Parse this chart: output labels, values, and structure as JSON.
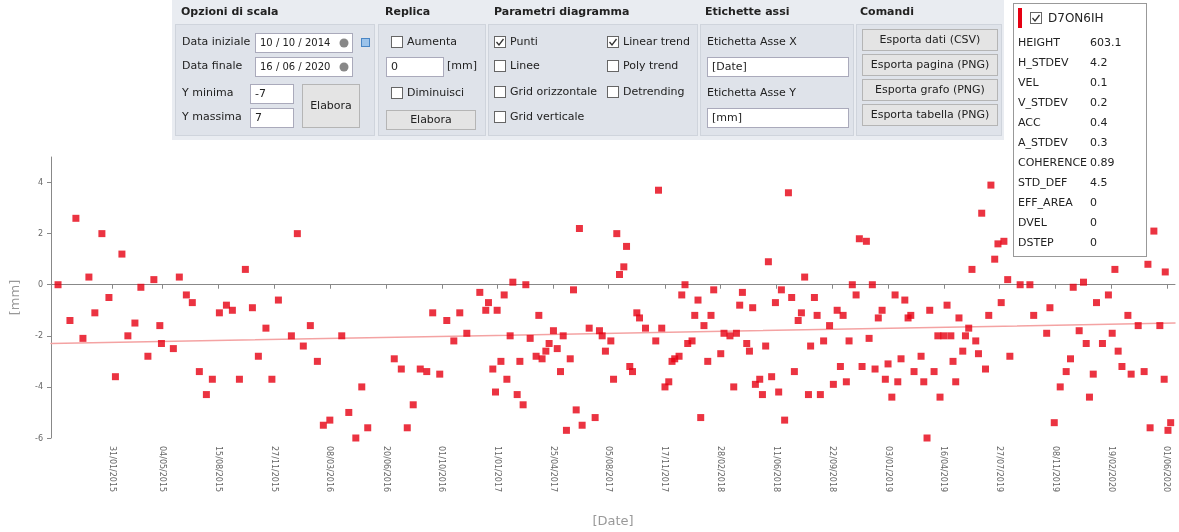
{
  "chart_data": [
    {
      "type": "other",
      "annotations": [
        "Opzioni di scala",
        "Data iniziale",
        "10 / 10 / 2014",
        "Data finale",
        "16 / 06 / 2020",
        "Y minima",
        "-7",
        "Y massima",
        "7",
        "Elabora",
        "Replica",
        "Aumenta",
        "0",
        "[mm]",
        "Diminuisci",
        "Elabora",
        "Parametri diagramma",
        "Punti",
        "Linee",
        "Grid orizzontale",
        "Grid verticale",
        "Linear trend",
        "Poly trend",
        "Detrending",
        "Etichette assi",
        "Etichetta Asse X",
        "[Date]",
        "Etichetta Asse Y",
        "[mm]",
        "Comandi",
        "Esporta dati (CSV)",
        "Esporta pagina (PNG)",
        "Esporta grafo (PNG)",
        "Esporta tabella (PNG)"
      ]
    },
    {
      "type": "other",
      "annotations": [
        "D7ON6IH",
        "HEIGHT",
        "603.1",
        "H_STDEV",
        "4.2",
        "VEL",
        "0.1",
        "V_STDEV",
        "0.2",
        "ACC",
        "0.4",
        "A_STDEV",
        "0.3",
        "COHERENCE",
        "0.89",
        "STD_DEF",
        "4.5",
        "EFF_AREA",
        "0",
        "DVEL",
        "0",
        "DSTEP",
        "0"
      ]
    },
    {
      "type": "scatter",
      "xlabel": "[Date]",
      "ylabel": "[mm]",
      "line_style": "solid",
      "xlim": [
        "2014-10-10",
        "2020-06-16"
      ],
      "ylim": [
        -6,
        5
      ],
      "yticks": [
        -6,
        -4,
        -2,
        0,
        2,
        4
      ],
      "xticks": [
        {
          "value": "2015-01-31",
          "label": "31/01/2015"
        },
        {
          "value": "2015-05-04",
          "label": "04/05/2015"
        },
        {
          "value": "2015-08-15",
          "label": "15/08/2015"
        },
        {
          "value": "2015-11-27",
          "label": "27/11/2015"
        },
        {
          "value": "2016-03-08",
          "label": "08/03/2016"
        },
        {
          "value": "2016-06-20",
          "label": "20/06/2016"
        },
        {
          "value": "2016-10-01",
          "label": "01/10/2016"
        },
        {
          "value": "2017-01-11",
          "label": "11/01/2017"
        },
        {
          "value": "2017-04-25",
          "label": "25/04/2017"
        },
        {
          "value": "2017-08-05",
          "label": "05/08/2017"
        },
        {
          "value": "2017-11-17",
          "label": "17/11/2017"
        },
        {
          "value": "2018-02-28",
          "label": "28/02/2018"
        },
        {
          "value": "2018-06-11",
          "label": "11/06/2018"
        },
        {
          "value": "2018-09-22",
          "label": "22/09/2018"
        },
        {
          "value": "2019-01-03",
          "label": "03/01/2019"
        },
        {
          "value": "2019-04-16",
          "label": "16/04/2019"
        },
        {
          "value": "2019-07-27",
          "label": "27/07/2019"
        },
        {
          "value": "2019-11-08",
          "label": "08/11/2019"
        },
        {
          "value": "2020-02-19",
          "label": "19/02/2020"
        },
        {
          "value": "2020-06-01",
          "label": "01/06/2020"
        }
      ],
      "series": [
        {
          "type": "scatter",
          "marker": "square",
          "color": "#e60012",
          "x": [
            "2014-10-23",
            "2014-11-14",
            "2014-11-25",
            "2014-12-08",
            "2014-12-19",
            "2014-12-30",
            "2015-01-12",
            "2015-01-25",
            "2015-02-06",
            "2015-02-18",
            "2015-03-01",
            "2015-03-14",
            "2015-03-25",
            "2015-04-07",
            "2015-04-18",
            "2015-04-29",
            "2015-05-02",
            "2015-05-24",
            "2015-06-04",
            "2015-06-17",
            "2015-06-28",
            "2015-07-11",
            "2015-07-24",
            "2015-08-04",
            "2015-08-17",
            "2015-08-30",
            "2015-09-10",
            "2015-09-23",
            "2015-10-04",
            "2015-10-17",
            "2015-10-28",
            "2015-11-11",
            "2015-11-22",
            "2015-12-04",
            "2015-12-28",
            "2016-01-08",
            "2016-01-19",
            "2016-02-01",
            "2016-02-14",
            "2016-02-25",
            "2016-03-08",
            "2016-03-30",
            "2016-04-12",
            "2016-04-25",
            "2016-05-06",
            "2016-05-17",
            "2016-07-05",
            "2016-07-18",
            "2016-07-29",
            "2016-08-09",
            "2016-08-22",
            "2016-09-03",
            "2016-09-14",
            "2016-09-27",
            "2016-10-10",
            "2016-10-23",
            "2016-11-03",
            "2016-11-16",
            "2016-12-10",
            "2016-12-21",
            "2016-12-26",
            "2017-01-03",
            "2017-01-08",
            "2017-01-11",
            "2017-01-18",
            "2017-01-24",
            "2017-01-29",
            "2017-02-04",
            "2017-02-09",
            "2017-02-17",
            "2017-02-22",
            "2017-02-28",
            "2017-03-05",
            "2017-03-13",
            "2017-03-24",
            "2017-03-29",
            "2017-04-04",
            "2017-04-11",
            "2017-04-17",
            "2017-04-25",
            "2017-05-02",
            "2017-05-08",
            "2017-05-13",
            "2017-05-19",
            "2017-05-26",
            "2017-06-01",
            "2017-06-06",
            "2017-06-12",
            "2017-06-17",
            "2017-06-30",
            "2017-07-11",
            "2017-07-19",
            "2017-07-24",
            "2017-07-30",
            "2017-08-09",
            "2017-08-14",
            "2017-08-20",
            "2017-08-25",
            "2017-09-02",
            "2017-09-07",
            "2017-09-13",
            "2017-09-18",
            "2017-09-26",
            "2017-10-01",
            "2017-10-12",
            "2017-10-31",
            "2017-11-05",
            "2017-11-11",
            "2017-11-17",
            "2017-11-24",
            "2017-11-30",
            "2017-12-05",
            "2017-12-13",
            "2017-12-18",
            "2017-12-24",
            "2017-12-29",
            "2018-01-06",
            "2018-01-11",
            "2018-01-17",
            "2018-01-22",
            "2018-01-28",
            "2018-02-04",
            "2018-02-10",
            "2018-02-15",
            "2018-02-28",
            "2018-03-06",
            "2018-03-17",
            "2018-03-24",
            "2018-03-29",
            "2018-04-04",
            "2018-04-09",
            "2018-04-17",
            "2018-04-22",
            "2018-04-28",
            "2018-05-03",
            "2018-05-11",
            "2018-05-16",
            "2018-05-22",
            "2018-05-27",
            "2018-06-02",
            "2018-06-09",
            "2018-06-15",
            "2018-06-20",
            "2018-06-26",
            "2018-07-03",
            "2018-07-09",
            "2018-07-14",
            "2018-07-21",
            "2018-07-27",
            "2018-08-02",
            "2018-08-09",
            "2018-08-13",
            "2018-08-20",
            "2018-08-25",
            "2018-08-31",
            "2018-09-06",
            "2018-09-17",
            "2018-09-24",
            "2018-10-01",
            "2018-10-07",
            "2018-10-12",
            "2018-10-18",
            "2018-10-23",
            "2018-10-29",
            "2018-11-05",
            "2018-11-11",
            "2018-11-16",
            "2018-11-24",
            "2018-11-29",
            "2018-12-05",
            "2018-12-10",
            "2018-12-16",
            "2018-12-23",
            "2018-12-29",
            "2019-01-03",
            "2019-01-10",
            "2019-01-16",
            "2019-01-21",
            "2019-01-27",
            "2019-02-03",
            "2019-02-09",
            "2019-02-14",
            "2019-02-20",
            "2019-03-05",
            "2019-03-10",
            "2019-03-16",
            "2019-03-21",
            "2019-03-29",
            "2019-04-05",
            "2019-04-09",
            "2019-04-16",
            "2019-04-22",
            "2019-04-29",
            "2019-05-03",
            "2019-05-08",
            "2019-05-14",
            "2019-05-21",
            "2019-05-26",
            "2019-06-01",
            "2019-06-07",
            "2019-06-14",
            "2019-06-19",
            "2019-06-25",
            "2019-07-02",
            "2019-07-08",
            "2019-07-12",
            "2019-07-19",
            "2019-07-25",
            "2019-07-31",
            "2019-08-05",
            "2019-08-12",
            "2019-08-16",
            "2019-09-04",
            "2019-09-22",
            "2019-09-29",
            "2019-10-23",
            "2019-10-29",
            "2019-11-06",
            "2019-11-17",
            "2019-11-28",
            "2019-12-06",
            "2019-12-11",
            "2019-12-22",
            "2019-12-30",
            "2020-01-04",
            "2020-01-10",
            "2020-01-17",
            "2020-01-23",
            "2020-02-03",
            "2020-02-14",
            "2020-02-21",
            "2020-02-26",
            "2020-03-03",
            "2020-03-10",
            "2020-03-21",
            "2020-03-27",
            "2020-04-09",
            "2020-04-20",
            "2020-04-27",
            "2020-05-01",
            "2020-05-08",
            "2020-05-19",
            "2020-05-27",
            "2020-05-29",
            "2020-06-03",
            "2020-06-08"
          ],
          "values": [
            0.0,
            -1.4,
            2.6,
            -2.1,
            0.3,
            -1.1,
            2.0,
            -0.5,
            -3.6,
            1.2,
            -2.0,
            -1.5,
            -0.1,
            -2.8,
            0.2,
            -1.6,
            -2.3,
            -2.5,
            0.3,
            -0.4,
            -0.7,
            -3.4,
            -4.3,
            -3.7,
            -1.1,
            -0.8,
            -1.0,
            -3.7,
            0.6,
            -0.9,
            -2.8,
            -1.7,
            -3.7,
            -0.6,
            -2.0,
            2.0,
            -2.4,
            -1.6,
            -3.0,
            -5.5,
            -5.3,
            -2.0,
            -5.0,
            -6.0,
            -4.0,
            -5.6,
            -2.9,
            -3.3,
            -5.6,
            -4.7,
            -3.3,
            -3.4,
            -1.1,
            -3.5,
            -1.4,
            -2.2,
            -1.1,
            -1.9,
            -0.3,
            -1.0,
            -0.7,
            -3.3,
            -4.2,
            -1.0,
            -3.0,
            -0.4,
            -3.7,
            -2.0,
            0.1,
            -4.3,
            -3.0,
            -4.7,
            0.0,
            -2.1,
            -2.8,
            -1.2,
            -2.9,
            -2.6,
            -2.3,
            -1.8,
            -2.5,
            -3.4,
            -2.0,
            -5.7,
            -2.9,
            -0.2,
            -4.9,
            2.2,
            -5.5,
            -1.7,
            -5.2,
            -1.8,
            -2.0,
            -2.6,
            -2.2,
            -3.7,
            2.0,
            0.4,
            0.7,
            1.5,
            -3.2,
            -3.4,
            -1.1,
            -1.3,
            -1.7,
            -2.2,
            3.7,
            -1.7,
            -4.0,
            -3.8,
            -3.0,
            -2.9,
            -2.8,
            -0.4,
            0.0,
            -2.3,
            -2.2,
            -1.2,
            -0.6,
            -5.2,
            -1.6,
            -3.0,
            -1.2,
            -0.2,
            -2.7,
            -1.9,
            -2.0,
            -4.0,
            -1.9,
            -0.8,
            -0.3,
            -2.3,
            -2.6,
            -0.9,
            -3.9,
            -3.7,
            -4.3,
            -2.4,
            0.9,
            -3.6,
            -0.7,
            -4.2,
            -0.2,
            -5.3,
            3.6,
            -0.5,
            -3.4,
            -1.4,
            -1.1,
            0.3,
            -4.3,
            -2.4,
            -0.5,
            -1.2,
            -4.3,
            -2.2,
            -1.6,
            -3.9,
            -1.0,
            -3.2,
            -1.2,
            -3.8,
            -2.2,
            0.0,
            -0.4,
            1.8,
            -3.2,
            1.7,
            -2.1,
            0.0,
            -3.3,
            -1.3,
            -1.0,
            -3.7,
            -3.1,
            -4.4,
            -0.4,
            -3.8,
            -2.9,
            -0.6,
            -1.3,
            -1.2,
            -3.4,
            -2.8,
            -3.8,
            -6.0,
            -1.0,
            -3.4,
            -2.0,
            -4.4,
            -2.0,
            -0.8,
            -2.0,
            -3.0,
            -3.8,
            -1.3,
            -2.6,
            -2.0,
            -1.7,
            0.6,
            -2.2,
            -2.7,
            2.8,
            -3.3,
            -1.2,
            3.9,
            1.0,
            1.6,
            -0.7,
            1.7,
            0.2,
            -2.8,
            0.0,
            0.0,
            -1.2,
            -1.9,
            -0.9,
            -5.4,
            -4.0,
            -3.4,
            -2.9,
            -0.1,
            -1.8,
            0.1,
            -2.3,
            -4.4,
            -3.5,
            -0.7,
            -2.3,
            -0.4,
            -1.9,
            0.6,
            -2.6,
            -3.2,
            -1.2,
            -3.5,
            -1.6,
            -3.4,
            0.8,
            -5.6,
            2.1,
            -1.6,
            -3.7,
            0.5,
            -5.7,
            -5.4
          ]
        },
        {
          "type": "line",
          "marker": "none",
          "color": "#f4a3a3",
          "x": [
            "2014-10-10",
            "2020-06-16"
          ],
          "values": [
            -2.3,
            -1.5
          ]
        }
      ]
    }
  ]
}
